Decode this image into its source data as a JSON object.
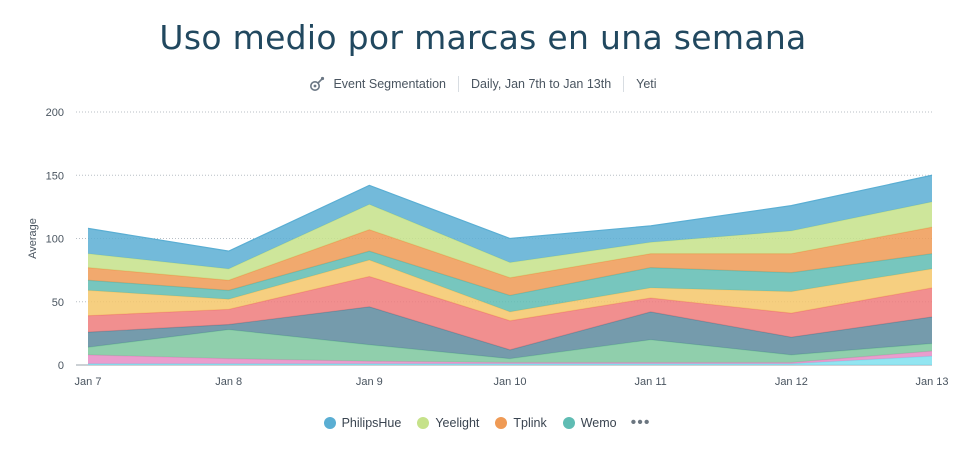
{
  "title": "Uso medio por marcas en una semana",
  "header": {
    "report_type": "Event Segmentation",
    "date_range": "Daily, Jan 7th to Jan 13th",
    "event": "Yeti",
    "report_icon": "segmentation-icon"
  },
  "legend": {
    "items": [
      {
        "name": "PhilipsHue",
        "color": "#5aaed3"
      },
      {
        "name": "Yeelight",
        "color": "#c6e28a"
      },
      {
        "name": "Tplink",
        "color": "#ef9a55"
      },
      {
        "name": "Wemo",
        "color": "#5fbcb3"
      }
    ],
    "more_icon": "more-dots-icon"
  },
  "chart_data": {
    "type": "area",
    "stacked": true,
    "ylabel": "Average",
    "ylim": [
      0,
      200
    ],
    "yticks": [
      0,
      50,
      100,
      150,
      200
    ],
    "grid": true,
    "legend_position": "bottom",
    "categories": [
      "Jan 7",
      "Jan 8",
      "Jan 9",
      "Jan 10",
      "Jan 11",
      "Jan 12",
      "Jan 13"
    ],
    "series": [
      {
        "color": "#7fe0ef",
        "values": [
          1,
          1,
          1,
          1,
          1,
          1,
          7
        ]
      },
      {
        "color": "#e68cc4",
        "values": [
          7,
          4,
          2,
          1,
          1,
          1,
          4
        ]
      },
      {
        "color": "#7cc79d",
        "values": [
          6,
          23,
          13,
          3,
          18,
          6,
          6
        ]
      },
      {
        "color": "#5d8a9e",
        "values": [
          12,
          4,
          30,
          7,
          22,
          14,
          21
        ]
      },
      {
        "color": "#ee7b7b",
        "values": [
          13,
          12,
          24,
          23,
          11,
          19,
          23
        ]
      },
      {
        "color": "#f5c76a",
        "values": [
          20,
          8,
          13,
          7,
          8,
          17,
          15
        ]
      },
      {
        "color": "#5fbcb3",
        "name": "Wemo",
        "values": [
          8,
          7,
          7,
          13,
          16,
          15,
          12
        ]
      },
      {
        "name": "Tplink",
        "color": "#ef9a55",
        "values": [
          10,
          8,
          17,
          14,
          11,
          15,
          21
        ]
      },
      {
        "name": "Yeelight",
        "color": "#c6e28a",
        "values": [
          11,
          9,
          20,
          12,
          9,
          18,
          20
        ]
      },
      {
        "name": "PhilipsHue",
        "color": "#5aaed3",
        "values": [
          20,
          14,
          15,
          19,
          13,
          20,
          21
        ]
      }
    ]
  }
}
